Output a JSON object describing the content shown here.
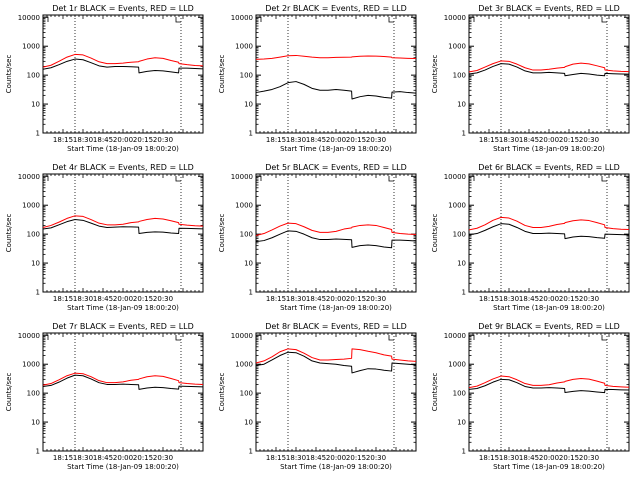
{
  "x_tick_labels": [
    "18:15",
    "18:30",
    "18:45",
    "20:00",
    "20:15",
    "20:30"
  ],
  "y_tick_labels": [
    "1",
    "10",
    "100",
    "1000",
    "10000"
  ],
  "colors": {
    "events": "#000000",
    "lld": "#ff0000",
    "axes": "#000000",
    "background": "#ffffff"
  },
  "chart_data": [
    {
      "type": "line",
      "title": "Det 1r BLACK = Events, RED = LLD",
      "xlabel": "Start Time (18-Jan-09 18:00:20)",
      "ylabel": "Counts/sec",
      "yscale": "log",
      "ylim": [
        1,
        12000
      ],
      "x_range_min": [
        0,
        40
      ],
      "dotted_x_min": [
        8,
        34.5
      ],
      "x_min": [
        0,
        2,
        4,
        6,
        8,
        10,
        12,
        14,
        16,
        18,
        20,
        22,
        23.9,
        24,
        26,
        28,
        30,
        32,
        33.9,
        34,
        36,
        38,
        40
      ],
      "series": [
        {
          "name": "Events",
          "color": "#000000",
          "values": [
            160,
            180,
            230,
            300,
            360,
            340,
            270,
            210,
            190,
            200,
            200,
            195,
            190,
            120,
            135,
            145,
            140,
            130,
            120,
            175,
            175,
            170,
            165
          ]
        },
        {
          "name": "LLD",
          "color": "#ff0000",
          "values": [
            190,
            220,
            300,
            420,
            520,
            500,
            390,
            290,
            250,
            250,
            260,
            280,
            290,
            300,
            360,
            400,
            380,
            320,
            280,
            250,
            230,
            215,
            210
          ]
        }
      ]
    },
    {
      "type": "line",
      "title": "Det 2r BLACK = Events, RED = LLD",
      "xlabel": "Start Time (18-Jan-09 18:00:20)",
      "ylabel": "Counts/sec",
      "yscale": "log",
      "ylim": [
        1,
        12000
      ],
      "x_range_min": [
        0,
        40
      ],
      "dotted_x_min": [
        8,
        34.5
      ],
      "x_min": [
        0,
        2,
        4,
        6,
        8,
        10,
        12,
        14,
        16,
        18,
        20,
        22,
        23.9,
        24,
        26,
        28,
        30,
        32,
        33.9,
        34,
        36,
        38,
        40
      ],
      "series": [
        {
          "name": "Events",
          "color": "#000000",
          "values": [
            25,
            28,
            32,
            40,
            55,
            60,
            48,
            35,
            30,
            30,
            32,
            30,
            28,
            15,
            18,
            20,
            19,
            17,
            16,
            26,
            27,
            25,
            24
          ]
        },
        {
          "name": "LLD",
          "color": "#ff0000",
          "values": [
            350,
            360,
            380,
            420,
            470,
            480,
            450,
            420,
            400,
            400,
            410,
            415,
            420,
            430,
            450,
            460,
            455,
            440,
            420,
            400,
            390,
            380,
            375
          ]
        }
      ]
    },
    {
      "type": "line",
      "title": "Det 3r BLACK = Events, RED = LLD",
      "xlabel": "Start Time (18-Jan-09 18:00:20)",
      "ylabel": "Counts/sec",
      "yscale": "log",
      "ylim": [
        1,
        12000
      ],
      "x_range_min": [
        0,
        40
      ],
      "dotted_x_min": [
        8,
        34.5
      ],
      "x_min": [
        0,
        2,
        4,
        6,
        8,
        10,
        12,
        14,
        16,
        18,
        20,
        22,
        23.9,
        24,
        26,
        28,
        30,
        32,
        33.9,
        34,
        36,
        38,
        40
      ],
      "series": [
        {
          "name": "Events",
          "color": "#000000",
          "values": [
            110,
            120,
            150,
            200,
            250,
            240,
            190,
            140,
            120,
            120,
            125,
            120,
            115,
            95,
            105,
            115,
            110,
            100,
            95,
            115,
            112,
            110,
            108
          ]
        },
        {
          "name": "LLD",
          "color": "#ff0000",
          "values": [
            130,
            145,
            190,
            250,
            310,
            300,
            240,
            180,
            150,
            150,
            160,
            175,
            185,
            195,
            240,
            260,
            245,
            210,
            180,
            150,
            140,
            135,
            132
          ]
        }
      ]
    },
    {
      "type": "line",
      "title": "Det 4r BLACK = Events, RED = LLD",
      "xlabel": "Start Time (18-Jan-09 18:00:20)",
      "ylabel": "Counts/sec",
      "yscale": "log",
      "ylim": [
        1,
        12000
      ],
      "x_range_min": [
        0,
        40
      ],
      "dotted_x_min": [
        8,
        34.5
      ],
      "x_min": [
        0,
        2,
        4,
        6,
        8,
        10,
        12,
        14,
        16,
        18,
        20,
        22,
        23.9,
        24,
        26,
        28,
        30,
        32,
        33.9,
        34,
        36,
        38,
        40
      ],
      "series": [
        {
          "name": "Events",
          "color": "#000000",
          "values": [
            150,
            165,
            210,
            270,
            320,
            300,
            240,
            190,
            170,
            175,
            180,
            178,
            175,
            105,
            115,
            120,
            118,
            110,
            105,
            160,
            158,
            155,
            152
          ]
        },
        {
          "name": "LLD",
          "color": "#ff0000",
          "values": [
            170,
            200,
            260,
            350,
            430,
            410,
            320,
            240,
            210,
            210,
            220,
            250,
            265,
            275,
            320,
            350,
            335,
            290,
            250,
            220,
            205,
            195,
            190
          ]
        }
      ]
    },
    {
      "type": "line",
      "title": "Det 5r BLACK = Events, RED = LLD",
      "xlabel": "Start Time (18-Jan-09 18:00:20)",
      "ylabel": "Counts/sec",
      "yscale": "log",
      "ylim": [
        1,
        12000
      ],
      "x_range_min": [
        0,
        40
      ],
      "dotted_x_min": [
        8,
        34.5
      ],
      "x_min": [
        0,
        2,
        4,
        6,
        8,
        10,
        12,
        14,
        16,
        18,
        20,
        22,
        23.9,
        24,
        26,
        28,
        30,
        32,
        33.9,
        34,
        36,
        38,
        40
      ],
      "series": [
        {
          "name": "Events",
          "color": "#000000",
          "values": [
            55,
            60,
            75,
            100,
            130,
            125,
            100,
            75,
            65,
            65,
            68,
            66,
            64,
            35,
            40,
            42,
            40,
            36,
            34,
            62,
            62,
            60,
            58
          ]
        },
        {
          "name": "LLD",
          "color": "#ff0000",
          "values": [
            90,
            105,
            140,
            190,
            240,
            230,
            180,
            135,
            115,
            115,
            125,
            150,
            165,
            175,
            200,
            210,
            200,
            170,
            145,
            115,
            105,
            100,
            97
          ]
        }
      ]
    },
    {
      "type": "line",
      "title": "Det 6r BLACK = Events, RED = LLD",
      "xlabel": "Start Time (18-Jan-09 18:00:20)",
      "ylabel": "Counts/sec",
      "yscale": "log",
      "ylim": [
        1,
        12000
      ],
      "x_range_min": [
        0,
        40
      ],
      "dotted_x_min": [
        8,
        34.5
      ],
      "x_min": [
        0,
        2,
        4,
        6,
        8,
        10,
        12,
        14,
        16,
        18,
        20,
        22,
        23.9,
        24,
        26,
        28,
        30,
        32,
        33.9,
        34,
        36,
        38,
        40
      ],
      "series": [
        {
          "name": "Events",
          "color": "#000000",
          "values": [
            95,
            105,
            135,
            180,
            230,
            220,
            170,
            125,
            105,
            105,
            108,
            105,
            102,
            70,
            80,
            85,
            82,
            76,
            72,
            100,
            98,
            96,
            94
          ]
        },
        {
          "name": "LLD",
          "color": "#ff0000",
          "values": [
            140,
            160,
            210,
            300,
            380,
            360,
            280,
            200,
            170,
            170,
            185,
            215,
            235,
            250,
            290,
            310,
            295,
            250,
            210,
            170,
            155,
            148,
            145
          ]
        }
      ]
    },
    {
      "type": "line",
      "title": "Det 7r BLACK = Events, RED = LLD",
      "xlabel": "Start Time (18-Jan-09 18:00:20)",
      "ylabel": "Counts/sec",
      "yscale": "log",
      "ylim": [
        1,
        12000
      ],
      "x_range_min": [
        0,
        40
      ],
      "dotted_x_min": [
        8,
        34.5
      ],
      "x_min": [
        0,
        2,
        4,
        6,
        8,
        10,
        12,
        14,
        16,
        18,
        20,
        22,
        23.9,
        24,
        26,
        28,
        30,
        32,
        33.9,
        34,
        36,
        38,
        40
      ],
      "series": [
        {
          "name": "Events",
          "color": "#000000",
          "values": [
            170,
            185,
            240,
            330,
            420,
            400,
            310,
            230,
            200,
            200,
            205,
            200,
            195,
            135,
            150,
            160,
            155,
            145,
            138,
            175,
            172,
            168,
            165
          ]
        },
        {
          "name": "LLD",
          "color": "#ff0000",
          "values": [
            190,
            215,
            290,
            400,
            490,
            470,
            370,
            270,
            230,
            230,
            245,
            280,
            300,
            310,
            370,
            400,
            380,
            320,
            270,
            230,
            215,
            205,
            200
          ]
        }
      ]
    },
    {
      "type": "line",
      "title": "Det 8r BLACK = Events, RED = LLD",
      "xlabel": "Start Time (18-Jan-09 18:00:20)",
      "ylabel": "Counts/sec",
      "yscale": "log",
      "ylim": [
        1,
        12000
      ],
      "x_range_min": [
        0,
        40
      ],
      "dotted_x_min": [
        8,
        34.5
      ],
      "x_min": [
        0,
        2,
        4,
        6,
        8,
        10,
        12,
        14,
        16,
        18,
        20,
        22,
        23.9,
        24,
        26,
        28,
        30,
        32,
        33.9,
        34,
        36,
        38,
        40
      ],
      "series": [
        {
          "name": "Events",
          "color": "#000000",
          "values": [
            900,
            1000,
            1400,
            2000,
            2600,
            2500,
            1900,
            1300,
            1100,
            1050,
            1000,
            900,
            850,
            500,
            600,
            700,
            680,
            620,
            580,
            1100,
            1050,
            1000,
            950
          ]
        },
        {
          "name": "LLD",
          "color": "#ff0000",
          "values": [
            1100,
            1300,
            1800,
            2700,
            3400,
            3200,
            2400,
            1700,
            1400,
            1400,
            1450,
            1500,
            1600,
            3400,
            3200,
            2800,
            2500,
            2100,
            1900,
            1500,
            1400,
            1300,
            1250
          ]
        }
      ]
    },
    {
      "type": "line",
      "title": "Det 9r BLACK = Events, RED = LLD",
      "xlabel": "Start Time (18-Jan-09 18:00:20)",
      "ylabel": "Counts/sec",
      "yscale": "log",
      "ylim": [
        1,
        12000
      ],
      "x_range_min": [
        0,
        40
      ],
      "dotted_x_min": [
        8,
        34.5
      ],
      "x_min": [
        0,
        2,
        4,
        6,
        8,
        10,
        12,
        14,
        16,
        18,
        20,
        22,
        23.9,
        24,
        26,
        28,
        30,
        32,
        33.9,
        34,
        36,
        38,
        40
      ],
      "series": [
        {
          "name": "Events",
          "color": "#000000",
          "values": [
            135,
            145,
            180,
            240,
            300,
            290,
            230,
            170,
            150,
            150,
            155,
            150,
            145,
            105,
            115,
            122,
            118,
            110,
            104,
            135,
            133,
            130,
            128
          ]
        },
        {
          "name": "LLD",
          "color": "#ff0000",
          "values": [
            155,
            175,
            230,
            310,
            390,
            370,
            290,
            215,
            185,
            185,
            195,
            225,
            245,
            255,
            300,
            320,
            305,
            260,
            220,
            185,
            172,
            165,
            160
          ]
        }
      ]
    }
  ]
}
